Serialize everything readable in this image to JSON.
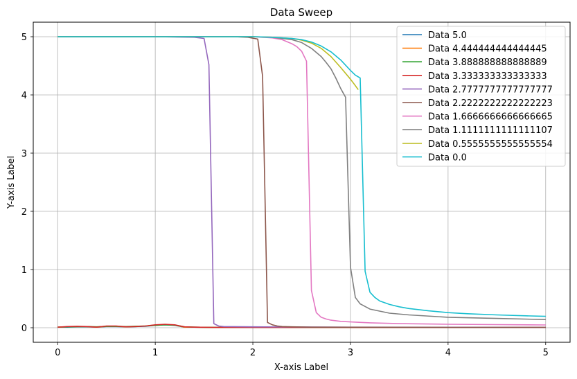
{
  "chart_data": {
    "type": "line",
    "title": "Data Sweep",
    "xlabel": "X-axis Label",
    "ylabel": "Y-axis Label",
    "xlim": [
      -0.25,
      5.25
    ],
    "ylim": [
      -0.25,
      5.25
    ],
    "xticks": [
      0,
      1,
      2,
      3,
      4,
      5
    ],
    "yticks": [
      0,
      1,
      2,
      3,
      4,
      5
    ],
    "grid": true,
    "legend_position": "top-right",
    "series": [
      {
        "name": "Data 5.0",
        "color": "#1f77b4",
        "x": [
          0,
          0.1,
          0.2,
          0.3,
          0.4,
          0.5,
          0.6,
          0.7,
          0.8,
          0.9,
          1.0,
          1.1,
          1.2,
          1.3,
          1.4,
          1.6,
          2.0,
          3.0,
          4.0,
          5.0
        ],
        "y": [
          0.01,
          0.01,
          0.015,
          0.015,
          0.01,
          0.02,
          0.02,
          0.015,
          0.02,
          0.025,
          0.04,
          0.05,
          0.04,
          0.01,
          0.01,
          0.005,
          0.005,
          0.005,
          0.005,
          0.005
        ]
      },
      {
        "name": "Data 4.444444444444445",
        "color": "#ff7f0e",
        "x": [
          0,
          0.1,
          0.2,
          0.3,
          0.4,
          0.5,
          0.6,
          0.7,
          0.8,
          0.9,
          1.0,
          1.1,
          1.2,
          1.3,
          1.4,
          1.6,
          2.0,
          3.0,
          4.0,
          5.0
        ],
        "y": [
          0.01,
          0.015,
          0.02,
          0.02,
          0.01,
          0.025,
          0.025,
          0.015,
          0.025,
          0.03,
          0.045,
          0.055,
          0.045,
          0.01,
          0.01,
          0.005,
          0.005,
          0.005,
          0.005,
          0.005
        ]
      },
      {
        "name": "Data 3.888888888888889",
        "color": "#2ca02c",
        "x": [
          0,
          0.1,
          0.2,
          0.3,
          0.4,
          0.5,
          0.6,
          0.7,
          0.8,
          0.9,
          1.0,
          1.1,
          1.2,
          1.3,
          1.4,
          1.6,
          2.0,
          3.0,
          4.0,
          5.0
        ],
        "y": [
          0.01,
          0.015,
          0.02,
          0.02,
          0.015,
          0.025,
          0.025,
          0.02,
          0.025,
          0.03,
          0.04,
          0.05,
          0.045,
          0.015,
          0.01,
          0.005,
          0.005,
          0.005,
          0.005,
          0.005
        ]
      },
      {
        "name": "Data 3.333333333333333",
        "color": "#d62728",
        "x": [
          0,
          0.1,
          0.2,
          0.3,
          0.4,
          0.5,
          0.6,
          0.7,
          0.8,
          0.9,
          1.0,
          1.1,
          1.2,
          1.3,
          1.4,
          1.6,
          2.0,
          3.0,
          4.0,
          5.0
        ],
        "y": [
          0.01,
          0.02,
          0.025,
          0.02,
          0.01,
          0.03,
          0.03,
          0.015,
          0.02,
          0.03,
          0.05,
          0.06,
          0.05,
          0.015,
          0.01,
          0.005,
          0.005,
          0.005,
          0.005,
          0.005
        ]
      },
      {
        "name": "Data 2.7777777777777777",
        "color": "#9467bd",
        "x": [
          0,
          0.5,
          1.0,
          1.4,
          1.5,
          1.55,
          1.6,
          1.65,
          1.7,
          2.0,
          3.0,
          4.0,
          5.0
        ],
        "y": [
          5.0,
          5.0,
          5.0,
          4.99,
          4.97,
          4.52,
          0.07,
          0.03,
          0.02,
          0.015,
          0.01,
          0.008,
          0.005
        ]
      },
      {
        "name": "Data 2.2222222222222223",
        "color": "#8c564b",
        "x": [
          0,
          0.5,
          1.0,
          1.5,
          1.8,
          1.95,
          2.05,
          2.1,
          2.15,
          2.2,
          2.25,
          2.3,
          2.4,
          2.6,
          3.0,
          4.0,
          5.0
        ],
        "y": [
          5.0,
          5.0,
          5.0,
          5.0,
          5.0,
          4.99,
          4.96,
          4.32,
          0.09,
          0.05,
          0.03,
          0.02,
          0.015,
          0.01,
          0.008,
          0.006,
          0.005
        ]
      },
      {
        "name": "Data 1.6666666666666665",
        "color": "#e377c2",
        "x": [
          0,
          1.0,
          1.5,
          2.0,
          2.2,
          2.3,
          2.4,
          2.45,
          2.5,
          2.55,
          2.6,
          2.65,
          2.7,
          2.75,
          2.8,
          2.9,
          3.0,
          3.2,
          3.5,
          4.0,
          4.5,
          5.0
        ],
        "y": [
          5.0,
          5.0,
          5.0,
          5.0,
          4.98,
          4.95,
          4.88,
          4.83,
          4.75,
          4.58,
          0.64,
          0.26,
          0.18,
          0.15,
          0.13,
          0.11,
          0.1,
          0.085,
          0.07,
          0.06,
          0.053,
          0.048
        ]
      },
      {
        "name": "Data 1.1111111111111107",
        "color": "#7f7f7f",
        "x": [
          0,
          1.0,
          1.5,
          2.0,
          2.2,
          2.4,
          2.5,
          2.6,
          2.7,
          2.75,
          2.8,
          2.85,
          2.9,
          2.95,
          3.0,
          3.05,
          3.1,
          3.2,
          3.4,
          3.6,
          4.0,
          4.5,
          5.0
        ],
        "y": [
          5.0,
          5.0,
          5.0,
          5.0,
          4.99,
          4.95,
          4.9,
          4.8,
          4.66,
          4.56,
          4.45,
          4.29,
          4.11,
          3.96,
          1.04,
          0.52,
          0.41,
          0.32,
          0.25,
          0.22,
          0.18,
          0.16,
          0.14
        ]
      },
      {
        "name": "Data 0.5555555555555554",
        "color": "#bcbd22",
        "x": [
          0,
          1.0,
          1.5,
          2.0,
          2.2,
          2.4,
          2.5,
          2.6,
          2.7,
          2.8,
          2.9,
          3.0,
          3.05,
          3.08
        ],
        "y": [
          5.0,
          5.0,
          5.0,
          5.0,
          4.99,
          4.97,
          4.94,
          4.89,
          4.8,
          4.66,
          4.47,
          4.27,
          4.16,
          4.09
        ]
      },
      {
        "name": "Data 0.0",
        "color": "#17becf",
        "x": [
          0,
          1.0,
          1.5,
          2.0,
          2.2,
          2.4,
          2.5,
          2.6,
          2.7,
          2.8,
          2.9,
          3.0,
          3.05,
          3.1,
          3.15,
          3.2,
          3.25,
          3.3,
          3.4,
          3.5,
          3.6,
          3.8,
          4.0,
          4.2,
          4.5,
          4.8,
          5.0
        ],
        "y": [
          5.0,
          5.0,
          5.0,
          5.0,
          4.99,
          4.97,
          4.95,
          4.91,
          4.84,
          4.74,
          4.6,
          4.42,
          4.34,
          4.29,
          0.97,
          0.61,
          0.52,
          0.46,
          0.4,
          0.36,
          0.33,
          0.29,
          0.26,
          0.24,
          0.22,
          0.205,
          0.195
        ]
      }
    ]
  }
}
